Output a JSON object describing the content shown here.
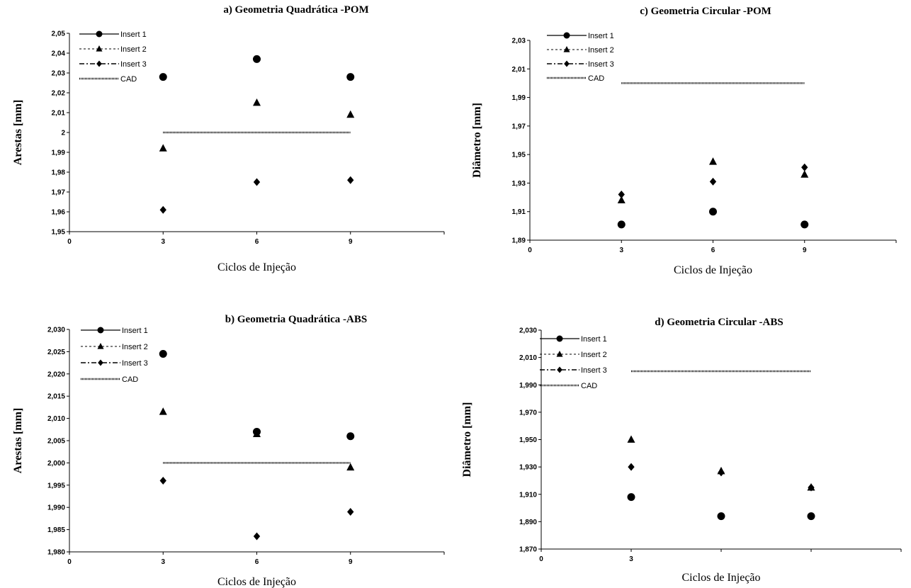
{
  "chart_data": [
    {
      "type": "scatter",
      "title": "a) Geometria Quadrática -POM",
      "xlabel": "Ciclos de Injeção",
      "ylabel": "Arestas [mm]",
      "xlim": [
        0,
        12
      ],
      "ylim": [
        1.95,
        2.05
      ],
      "xticks": [
        0,
        3,
        6,
        9
      ],
      "xtick_labels": [
        "0",
        "3",
        "6",
        "9"
      ],
      "yticks": [
        1.95,
        1.96,
        1.97,
        1.98,
        1.99,
        2.0,
        2.01,
        2.02,
        2.03,
        2.04,
        2.05
      ],
      "ytick_labels": [
        "1,95",
        "1,96",
        "1,97",
        "1,98",
        "1,99",
        "2",
        "2,01",
        "2,02",
        "2,03",
        "2,04",
        "2,05"
      ],
      "legend_position": "top-left",
      "series": [
        {
          "name": "Insert 1",
          "marker": "circle",
          "line": "solid",
          "x": [
            3,
            6,
            9
          ],
          "y": [
            2.028,
            2.037,
            2.028
          ]
        },
        {
          "name": "Insert 2",
          "marker": "triangle",
          "line": "dotted",
          "x": [
            3,
            6,
            9
          ],
          "y": [
            1.992,
            2.015,
            2.009
          ]
        },
        {
          "name": "Insert 3",
          "marker": "diamond",
          "line": "dashdot",
          "x": [
            3,
            6,
            9
          ],
          "y": [
            1.961,
            1.975,
            1.976
          ]
        },
        {
          "name": "CAD",
          "marker": "none",
          "line": "cad",
          "x": [
            3,
            9
          ],
          "y": [
            2.0,
            2.0
          ]
        }
      ]
    },
    {
      "type": "scatter",
      "title": "c) Geometria Circular -POM",
      "xlabel": "Ciclos de Injeção",
      "ylabel": "Diâmetro [mm]",
      "xlim": [
        0,
        12
      ],
      "ylim": [
        1.89,
        2.03
      ],
      "xticks": [
        0,
        3,
        6,
        9
      ],
      "xtick_labels": [
        "0",
        "3",
        "6",
        "9"
      ],
      "yticks": [
        1.89,
        1.91,
        1.93,
        1.95,
        1.97,
        1.99,
        2.01,
        2.03
      ],
      "ytick_labels": [
        "1,89",
        "1,91",
        "1,93",
        "1,95",
        "1,97",
        "1,99",
        "2,01",
        "2,03"
      ],
      "legend_position": "top-left",
      "series": [
        {
          "name": "Insert 1",
          "marker": "circle",
          "line": "solid",
          "x": [
            3,
            6,
            9
          ],
          "y": [
            1.901,
            1.91,
            1.901
          ]
        },
        {
          "name": "Insert 2",
          "marker": "triangle",
          "line": "dotted",
          "x": [
            3,
            6,
            9
          ],
          "y": [
            1.918,
            1.945,
            1.936
          ]
        },
        {
          "name": "Insert 3",
          "marker": "diamond",
          "line": "dashdot",
          "x": [
            3,
            6,
            9
          ],
          "y": [
            1.922,
            1.931,
            1.941
          ]
        },
        {
          "name": "CAD",
          "marker": "none",
          "line": "cad",
          "x": [
            3,
            9
          ],
          "y": [
            2.0,
            2.0
          ]
        }
      ]
    },
    {
      "type": "scatter",
      "title": "b) Geometria Quadrática -ABS",
      "xlabel": "Ciclos de Injeção",
      "ylabel": "Arestas [mm]",
      "xlim": [
        0,
        12
      ],
      "ylim": [
        1.98,
        2.03
      ],
      "xticks": [
        0,
        3,
        6,
        9
      ],
      "xtick_labels": [
        "0",
        "3",
        "6",
        "9"
      ],
      "yticks": [
        1.98,
        1.985,
        1.99,
        1.995,
        2.0,
        2.005,
        2.01,
        2.015,
        2.02,
        2.025,
        2.03
      ],
      "ytick_labels": [
        "1,980",
        "1,985",
        "1,990",
        "1,995",
        "2,000",
        "2,005",
        "2,010",
        "2,015",
        "2,020",
        "2,025",
        "2,030"
      ],
      "legend_position": "top-left",
      "series": [
        {
          "name": "Insert 1",
          "marker": "circle",
          "line": "solid",
          "x": [
            3,
            6,
            9
          ],
          "y": [
            2.0245,
            2.007,
            2.006
          ]
        },
        {
          "name": "Insert 2",
          "marker": "triangle",
          "line": "dotted",
          "x": [
            3,
            6,
            9
          ],
          "y": [
            2.0115,
            2.0065,
            1.999
          ]
        },
        {
          "name": "Insert 3",
          "marker": "diamond",
          "line": "dashdot",
          "x": [
            3,
            6,
            9
          ],
          "y": [
            1.996,
            1.9835,
            1.989
          ]
        },
        {
          "name": "CAD",
          "marker": "none",
          "line": "cad",
          "x": [
            3,
            9
          ],
          "y": [
            2.0,
            2.0
          ]
        }
      ]
    },
    {
      "type": "scatter",
      "title": "d) Geometria Circular -ABS",
      "xlabel": "Ciclos de Injeção",
      "ylabel": "Diâmetro [mm]",
      "xlim": [
        0,
        12
      ],
      "ylim": [
        1.87,
        2.03
      ],
      "xticks": [
        0,
        3,
        6,
        9
      ],
      "xtick_labels": [
        "0",
        "3",
        "",
        ""
      ],
      "yticks": [
        1.87,
        1.89,
        1.91,
        1.93,
        1.95,
        1.97,
        1.99,
        2.01,
        2.03
      ],
      "ytick_labels": [
        "1,870",
        "1,890",
        "1,910",
        "1,930",
        "1,950",
        "1,970",
        "1,990",
        "2,010",
        "2,030"
      ],
      "legend_position": "top-left",
      "series": [
        {
          "name": "Insert 1",
          "marker": "circle",
          "line": "solid",
          "x": [
            3,
            6,
            9
          ],
          "y": [
            1.908,
            1.894,
            1.894
          ]
        },
        {
          "name": "Insert 2",
          "marker": "triangle",
          "line": "dotted",
          "x": [
            3,
            6,
            9
          ],
          "y": [
            1.95,
            1.927,
            1.915
          ]
        },
        {
          "name": "Insert 3",
          "marker": "diamond",
          "line": "dashdot",
          "x": [
            3,
            6,
            9
          ],
          "y": [
            1.93,
            1.926,
            1.915
          ]
        },
        {
          "name": "CAD",
          "marker": "none",
          "line": "cad",
          "x": [
            3,
            9
          ],
          "y": [
            2.0,
            2.0
          ]
        }
      ]
    }
  ]
}
